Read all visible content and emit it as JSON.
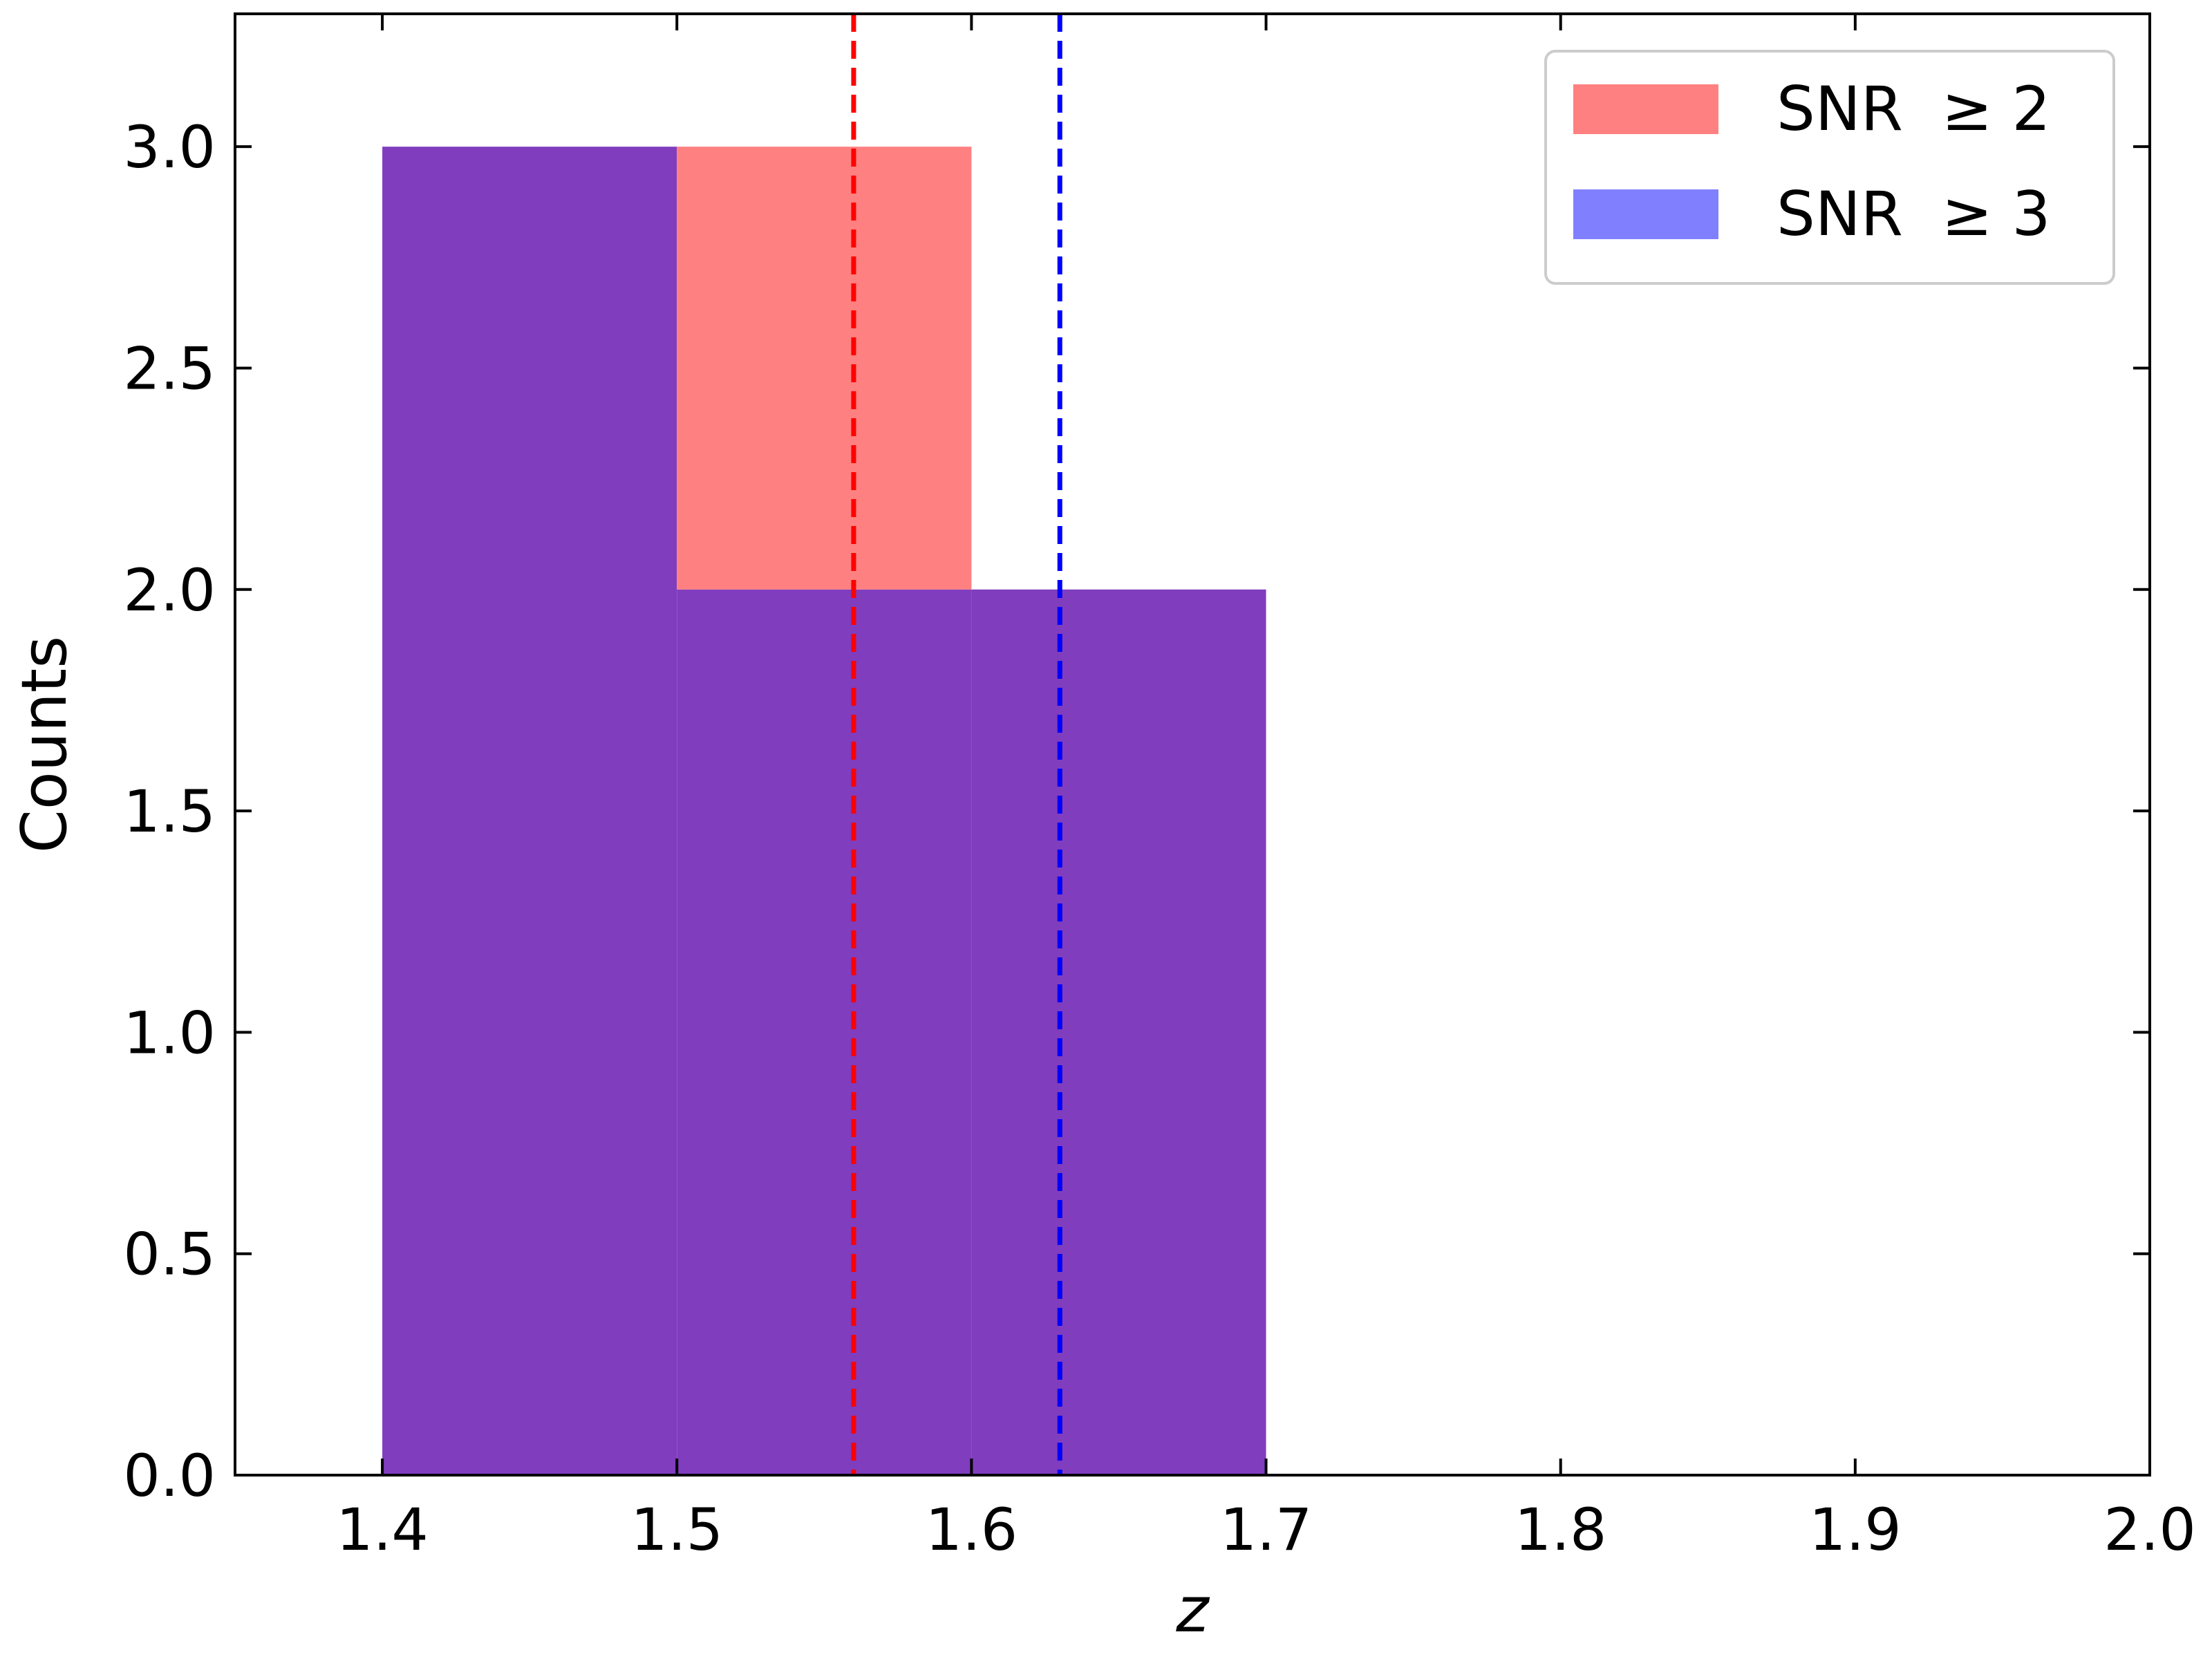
{
  "chart_data": {
    "type": "bar",
    "title": "",
    "xlabel": "z",
    "ylabel": "Counts",
    "xlim": [
      1.35,
      2.0
    ],
    "ylim": [
      0.0,
      3.3
    ],
    "xticks": [
      "1.4",
      "1.5",
      "1.6",
      "1.7",
      "1.8",
      "1.9",
      "2.0"
    ],
    "yticks": [
      "0.0",
      "0.5",
      "1.0",
      "1.5",
      "2.0",
      "2.5",
      "3.0"
    ],
    "bin_edges": [
      1.4,
      1.5,
      1.6,
      1.7
    ],
    "series": [
      {
        "name": "SNR  ≥ 2",
        "color": "#ff8080",
        "values": [
          3,
          3,
          2
        ]
      },
      {
        "name": "SNR  ≥ 3",
        "color": "#8080ff",
        "values": [
          3,
          2,
          2
        ]
      }
    ],
    "overlap_color": "#803dbe",
    "vlines": [
      {
        "x": 1.56,
        "color": "#ff0000",
        "style": "dashed"
      },
      {
        "x": 1.63,
        "color": "#0000ff",
        "style": "dashed"
      }
    ],
    "grid": false,
    "legend_position": "top-right"
  }
}
